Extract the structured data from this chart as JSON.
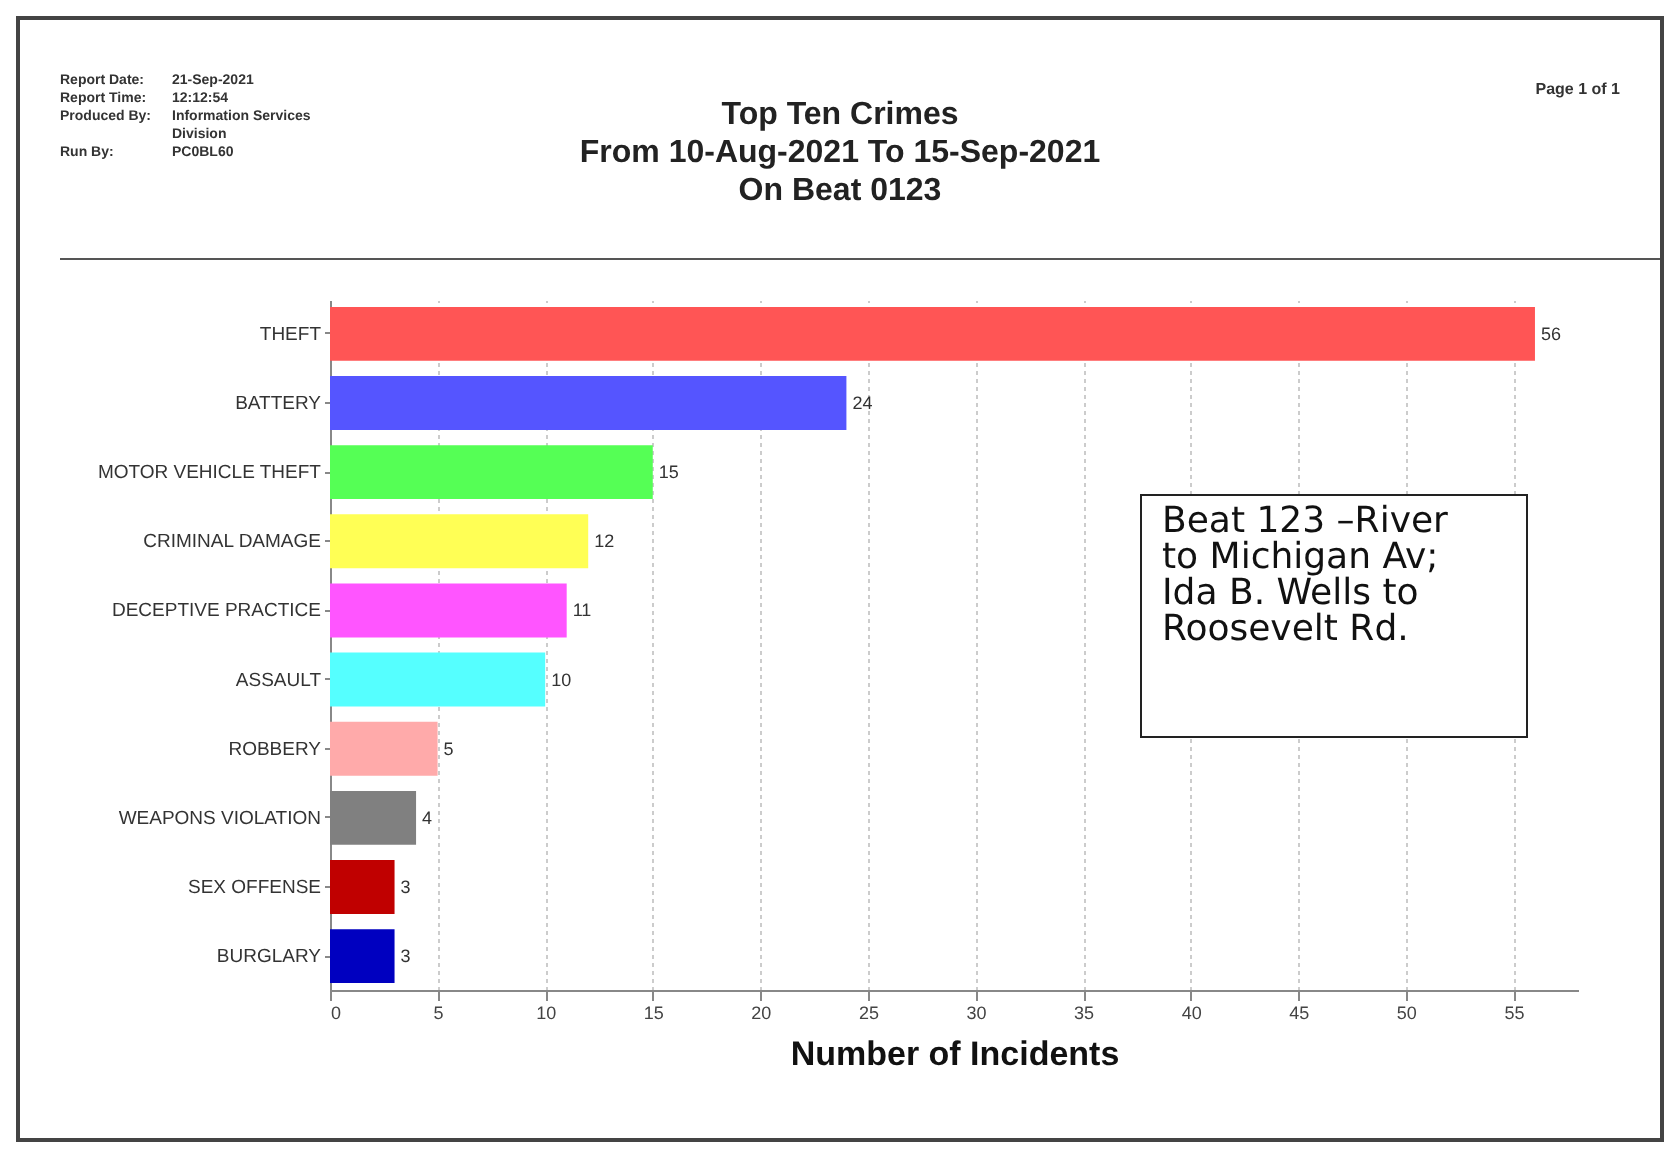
{
  "chart_data": {
    "type": "bar",
    "orientation": "horizontal",
    "title": "Top Ten Crimes",
    "subtitle": "From 10-Aug-2021 To 15-Sep-2021\nOn Beat 0123",
    "xlabel": "Number of Incidents",
    "categories": [
      "THEFT",
      "BATTERY",
      "MOTOR VEHICLE THEFT",
      "CRIMINAL DAMAGE",
      "DECEPTIVE PRACTICE",
      "ASSAULT",
      "ROBBERY",
      "WEAPONS VIOLATION",
      "SEX OFFENSE",
      "BURGLARY"
    ],
    "values": [
      56,
      24,
      15,
      12,
      11,
      10,
      5,
      4,
      3,
      3
    ],
    "colors": [
      "#ff5555",
      "#5555ff",
      "#55ff55",
      "#ffff55",
      "#ff55ff",
      "#55ffff",
      "#ffaaaa",
      "#808080",
      "#c00000",
      "#0000c0"
    ],
    "xlim": [
      0,
      58
    ],
    "xticks": [
      0,
      5,
      10,
      15,
      20,
      25,
      30,
      35,
      40,
      45,
      50,
      55
    ],
    "grid": "x",
    "data_labels": true,
    "annotations": [
      "Report Date: 21-Sep-2021",
      "Report Time: 12:12:54",
      "Produced By: Information Services Division",
      "Run By: PC0BL60",
      "Page 1 of 1",
      "Beat 123 –River to Michigan Av; Ida B. Wells to Roosevelt Rd."
    ]
  }
}
